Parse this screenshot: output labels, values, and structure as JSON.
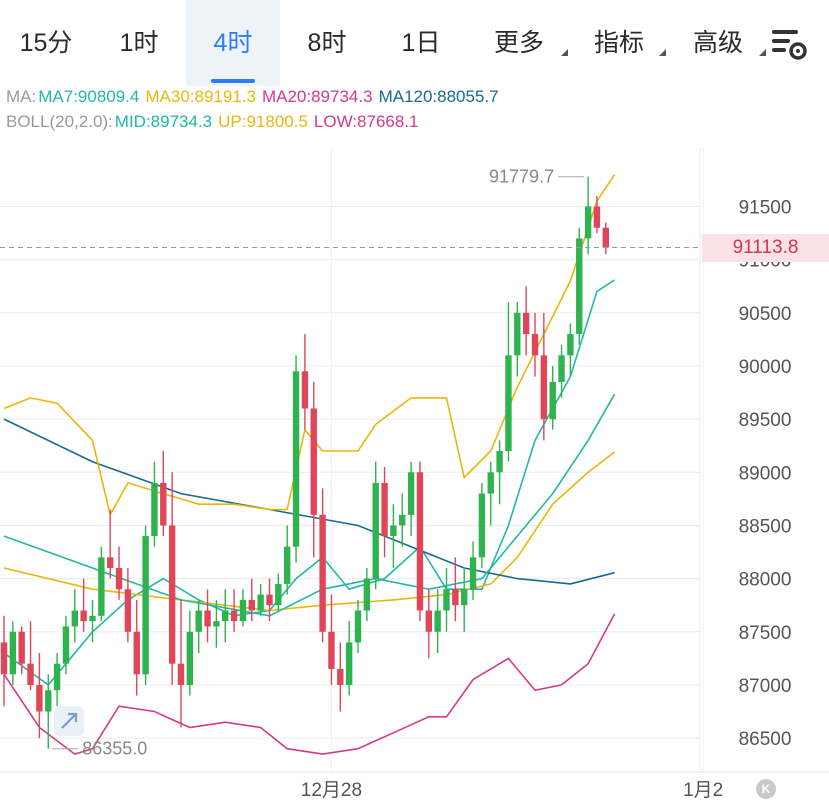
{
  "tabs": [
    {
      "label": "15分",
      "active": false,
      "caret": false
    },
    {
      "label": "1时",
      "active": false,
      "caret": false
    },
    {
      "label": "4时",
      "active": true,
      "caret": false
    },
    {
      "label": "8时",
      "active": false,
      "caret": false
    },
    {
      "label": "1日",
      "active": false,
      "caret": false
    },
    {
      "label": "更多",
      "active": false,
      "caret": true
    },
    {
      "label": "指标",
      "active": false,
      "caret": true
    },
    {
      "label": "高级",
      "active": false,
      "caret": true
    }
  ],
  "indicators": {
    "ma": {
      "prefix": "MA:",
      "items": [
        {
          "text": "MA7:90809.4",
          "color": "#21b8a6"
        },
        {
          "text": "MA30:89191.3",
          "color": "#e8b70c"
        },
        {
          "text": "MA20:89734.3",
          "color": "#d43a8c"
        },
        {
          "text": "MA120:88055.7",
          "color": "#1a6a93"
        }
      ]
    },
    "boll": {
      "prefix": "BOLL(20,2.0):",
      "items": [
        {
          "text": "MID:89734.3",
          "color": "#21b8a6"
        },
        {
          "text": "UP:91800.5",
          "color": "#e8b70c"
        },
        {
          "text": "LOW:87668.1",
          "color": "#d43a8c"
        }
      ]
    }
  },
  "current_price": "91113.8",
  "k_badge": "K",
  "colors": {
    "up": "#2fb34f",
    "down": "#e0465a",
    "ma7": "#21b8a6",
    "ma30": "#e8b70c",
    "ma20": "#d43a8c",
    "ma120": "#1a6a93",
    "boll_mid": "#21b8a6",
    "boll_up": "#e8b70c",
    "boll_low": "#d43a8c",
    "active_tab": "#2e7cf6"
  },
  "chart_data": {
    "type": "candlestick",
    "ylim": [
      86200,
      92050
    ],
    "y_ticks": [
      86500,
      87000,
      87500,
      88000,
      88500,
      89000,
      89500,
      90000,
      90500,
      91000,
      91500
    ],
    "x_ticks": [
      {
        "index": 37,
        "label": "12月28"
      },
      {
        "index": 79,
        "label": "1月2"
      }
    ],
    "annotations": {
      "high": "91779.7",
      "low": "86355.0"
    },
    "current_price": 91113.8,
    "candles": [
      [
        87400,
        87650,
        86800,
        87100
      ],
      [
        87100,
        87600,
        87000,
        87500
      ],
      [
        87500,
        87550,
        87100,
        87200
      ],
      [
        87200,
        87600,
        86950,
        87000
      ],
      [
        87000,
        87300,
        86500,
        86750
      ],
      [
        86750,
        87100,
        86400,
        86950
      ],
      [
        86950,
        87300,
        86800,
        87200
      ],
      [
        87200,
        87650,
        87100,
        87550
      ],
      [
        87550,
        87900,
        87400,
        87700
      ],
      [
        87700,
        88000,
        87500,
        87600
      ],
      [
        87600,
        87800,
        87400,
        87650
      ],
      [
        87650,
        88300,
        87600,
        88200
      ],
      [
        88200,
        88650,
        88000,
        88100
      ],
      [
        88100,
        88300,
        87800,
        87900
      ],
      [
        87900,
        88100,
        87400,
        87500
      ],
      [
        87500,
        87800,
        86900,
        87100
      ],
      [
        87100,
        88500,
        87000,
        88400
      ],
      [
        88400,
        89100,
        88300,
        88900
      ],
      [
        88900,
        89200,
        88400,
        88500
      ],
      [
        88500,
        89000,
        87000,
        87200
      ],
      [
        87200,
        87800,
        86600,
        87000
      ],
      [
        87000,
        87700,
        86900,
        87500
      ],
      [
        87500,
        87800,
        87300,
        87700
      ],
      [
        87700,
        87900,
        87400,
        87550
      ],
      [
        87550,
        87800,
        87350,
        87600
      ],
      [
        87600,
        87900,
        87400,
        87700
      ],
      [
        87700,
        87900,
        87500,
        87600
      ],
      [
        87600,
        87900,
        87550,
        87800
      ],
      [
        87800,
        88000,
        87600,
        87700
      ],
      [
        87700,
        87950,
        87650,
        87850
      ],
      [
        87850,
        88000,
        87600,
        87750
      ],
      [
        87750,
        88050,
        87700,
        87950
      ],
      [
        87950,
        88500,
        87850,
        88300
      ],
      [
        88300,
        90100,
        88150,
        89950
      ],
      [
        89950,
        90300,
        89400,
        89600
      ],
      [
        89600,
        89850,
        88200,
        88600
      ],
      [
        88600,
        88850,
        87400,
        87500
      ],
      [
        87500,
        87850,
        87000,
        87150
      ],
      [
        87150,
        87400,
        86750,
        87000
      ],
      [
        87000,
        87600,
        86900,
        87400
      ],
      [
        87400,
        87800,
        87300,
        87700
      ],
      [
        87700,
        88100,
        87600,
        88000
      ],
      [
        88000,
        89100,
        87900,
        88900
      ],
      [
        88900,
        89050,
        88200,
        88400
      ],
      [
        88400,
        88700,
        88100,
        88500
      ],
      [
        88500,
        88800,
        88300,
        88600
      ],
      [
        88600,
        89100,
        88400,
        89000
      ],
      [
        89000,
        89100,
        87600,
        87700
      ],
      [
        87700,
        87900,
        87250,
        87500
      ],
      [
        87500,
        87900,
        87300,
        87700
      ],
      [
        87700,
        88100,
        87500,
        87900
      ],
      [
        87900,
        88200,
        87600,
        87750
      ],
      [
        87750,
        88100,
        87500,
        87900
      ],
      [
        87900,
        88350,
        87800,
        88200
      ],
      [
        88200,
        88900,
        88100,
        88800
      ],
      [
        88800,
        89100,
        88500,
        89000
      ],
      [
        89000,
        89300,
        88700,
        89200
      ],
      [
        89200,
        90600,
        89100,
        90100
      ],
      [
        90100,
        90600,
        89900,
        90500
      ],
      [
        90500,
        90750,
        90100,
        90300
      ],
      [
        90300,
        90500,
        89900,
        90100
      ],
      [
        90100,
        90500,
        89300,
        89500
      ],
      [
        89500,
        90000,
        89400,
        89850
      ],
      [
        89850,
        90200,
        89700,
        90100
      ],
      [
        90100,
        90400,
        89900,
        90300
      ],
      [
        90300,
        91300,
        90200,
        91200
      ],
      [
        91200,
        91780,
        91050,
        91500
      ],
      [
        91500,
        91600,
        91250,
        91300
      ],
      [
        91300,
        91350,
        91050,
        91114
      ]
    ],
    "series": [
      {
        "name": "MA7",
        "color": "#21b8a6",
        "points": [
          [
            0,
            87300
          ],
          [
            5,
            87000
          ],
          [
            10,
            87500
          ],
          [
            14,
            87800
          ],
          [
            18,
            88000
          ],
          [
            22,
            87800
          ],
          [
            26,
            87650
          ],
          [
            30,
            87700
          ],
          [
            33,
            88000
          ],
          [
            36,
            88200
          ],
          [
            39,
            87900
          ],
          [
            43,
            88000
          ],
          [
            47,
            88300
          ],
          [
            50,
            87900
          ],
          [
            54,
            87900
          ],
          [
            57,
            88500
          ],
          [
            60,
            89300
          ],
          [
            64,
            89900
          ],
          [
            67,
            90700
          ],
          [
            69,
            90809
          ]
        ]
      },
      {
        "name": "MA30",
        "color": "#e8b70c",
        "points": [
          [
            0,
            88100
          ],
          [
            10,
            87900
          ],
          [
            20,
            87800
          ],
          [
            30,
            87700
          ],
          [
            36,
            87750
          ],
          [
            44,
            87800
          ],
          [
            50,
            87850
          ],
          [
            55,
            87950
          ],
          [
            58,
            88200
          ],
          [
            62,
            88700
          ],
          [
            66,
            89000
          ],
          [
            69,
            89191
          ]
        ]
      },
      {
        "name": "MA120",
        "color": "#1a6a93",
        "points": [
          [
            0,
            89500
          ],
          [
            10,
            89100
          ],
          [
            20,
            88800
          ],
          [
            30,
            88650
          ],
          [
            40,
            88500
          ],
          [
            46,
            88300
          ],
          [
            52,
            88100
          ],
          [
            58,
            88000
          ],
          [
            64,
            87950
          ],
          [
            69,
            88056
          ]
        ]
      },
      {
        "name": "BOLL MID",
        "color": "#21b8a6",
        "points": [
          [
            0,
            88400
          ],
          [
            10,
            88100
          ],
          [
            20,
            87800
          ],
          [
            30,
            87650
          ],
          [
            36,
            87900
          ],
          [
            42,
            88000
          ],
          [
            48,
            87900
          ],
          [
            54,
            88000
          ],
          [
            58,
            88400
          ],
          [
            62,
            88800
          ],
          [
            66,
            89300
          ],
          [
            69,
            89734
          ]
        ]
      },
      {
        "name": "BOLL UP",
        "color": "#e8b70c",
        "points": [
          [
            0,
            89600
          ],
          [
            3,
            89700
          ],
          [
            6,
            89650
          ],
          [
            10,
            89300
          ],
          [
            12,
            88600
          ],
          [
            14,
            88900
          ],
          [
            18,
            88800
          ],
          [
            22,
            88700
          ],
          [
            26,
            88700
          ],
          [
            30,
            88650
          ],
          [
            32,
            88650
          ],
          [
            34,
            89400
          ],
          [
            36,
            89200
          ],
          [
            38,
            89200
          ],
          [
            40,
            89200
          ],
          [
            42,
            89450
          ],
          [
            46,
            89700
          ],
          [
            50,
            89700
          ],
          [
            52,
            88950
          ],
          [
            55,
            89200
          ],
          [
            58,
            89800
          ],
          [
            61,
            90300
          ],
          [
            64,
            90800
          ],
          [
            67,
            91550
          ],
          [
            69,
            91800
          ]
        ]
      },
      {
        "name": "BOLL LOW",
        "color": "#d43a8c",
        "points": [
          [
            0,
            87100
          ],
          [
            4,
            86600
          ],
          [
            8,
            86350
          ],
          [
            10,
            86400
          ],
          [
            13,
            86800
          ],
          [
            17,
            86750
          ],
          [
            21,
            86600
          ],
          [
            25,
            86650
          ],
          [
            29,
            86600
          ],
          [
            32,
            86400
          ],
          [
            36,
            86350
          ],
          [
            40,
            86400
          ],
          [
            44,
            86550
          ],
          [
            48,
            86700
          ],
          [
            50,
            86700
          ],
          [
            53,
            87050
          ],
          [
            57,
            87250
          ],
          [
            60,
            86950
          ],
          [
            63,
            87000
          ],
          [
            66,
            87200
          ],
          [
            69,
            87668
          ]
        ]
      }
    ]
  }
}
